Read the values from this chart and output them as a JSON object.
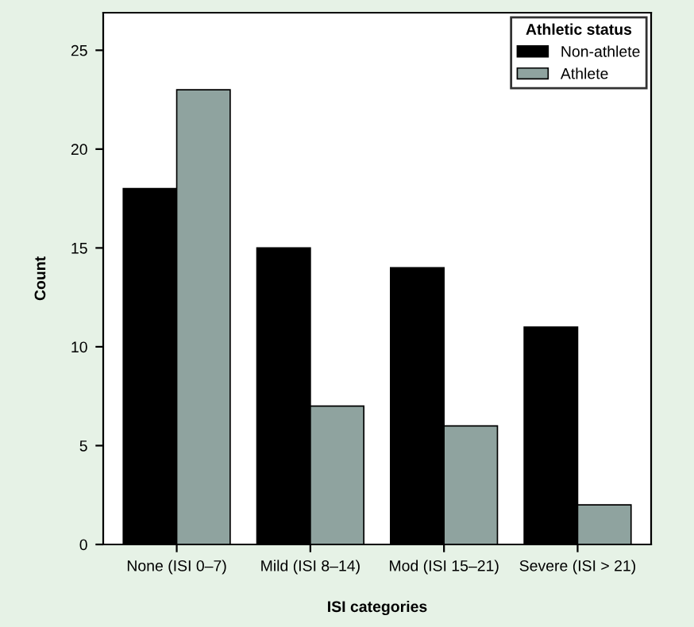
{
  "chart_data": {
    "type": "bar",
    "xlabel": "ISI categories",
    "ylabel": "Count",
    "legend_title": "Athletic status",
    "categories": [
      "None (ISI 0–7)",
      "Mild (ISI 8–14)",
      "Mod (ISI 15–21)",
      "Severe (ISI > 21)"
    ],
    "series": [
      {
        "name": "Non-athlete",
        "color": "#000000",
        "values": [
          18,
          15,
          14,
          11
        ]
      },
      {
        "name": "Athlete",
        "color": "#8fa39f",
        "values": [
          23,
          7,
          6,
          2
        ]
      }
    ],
    "ylim": [
      0,
      26.9
    ],
    "yticks": [
      0,
      5,
      10,
      15,
      20,
      25
    ],
    "grid": false,
    "legend": "top right"
  }
}
